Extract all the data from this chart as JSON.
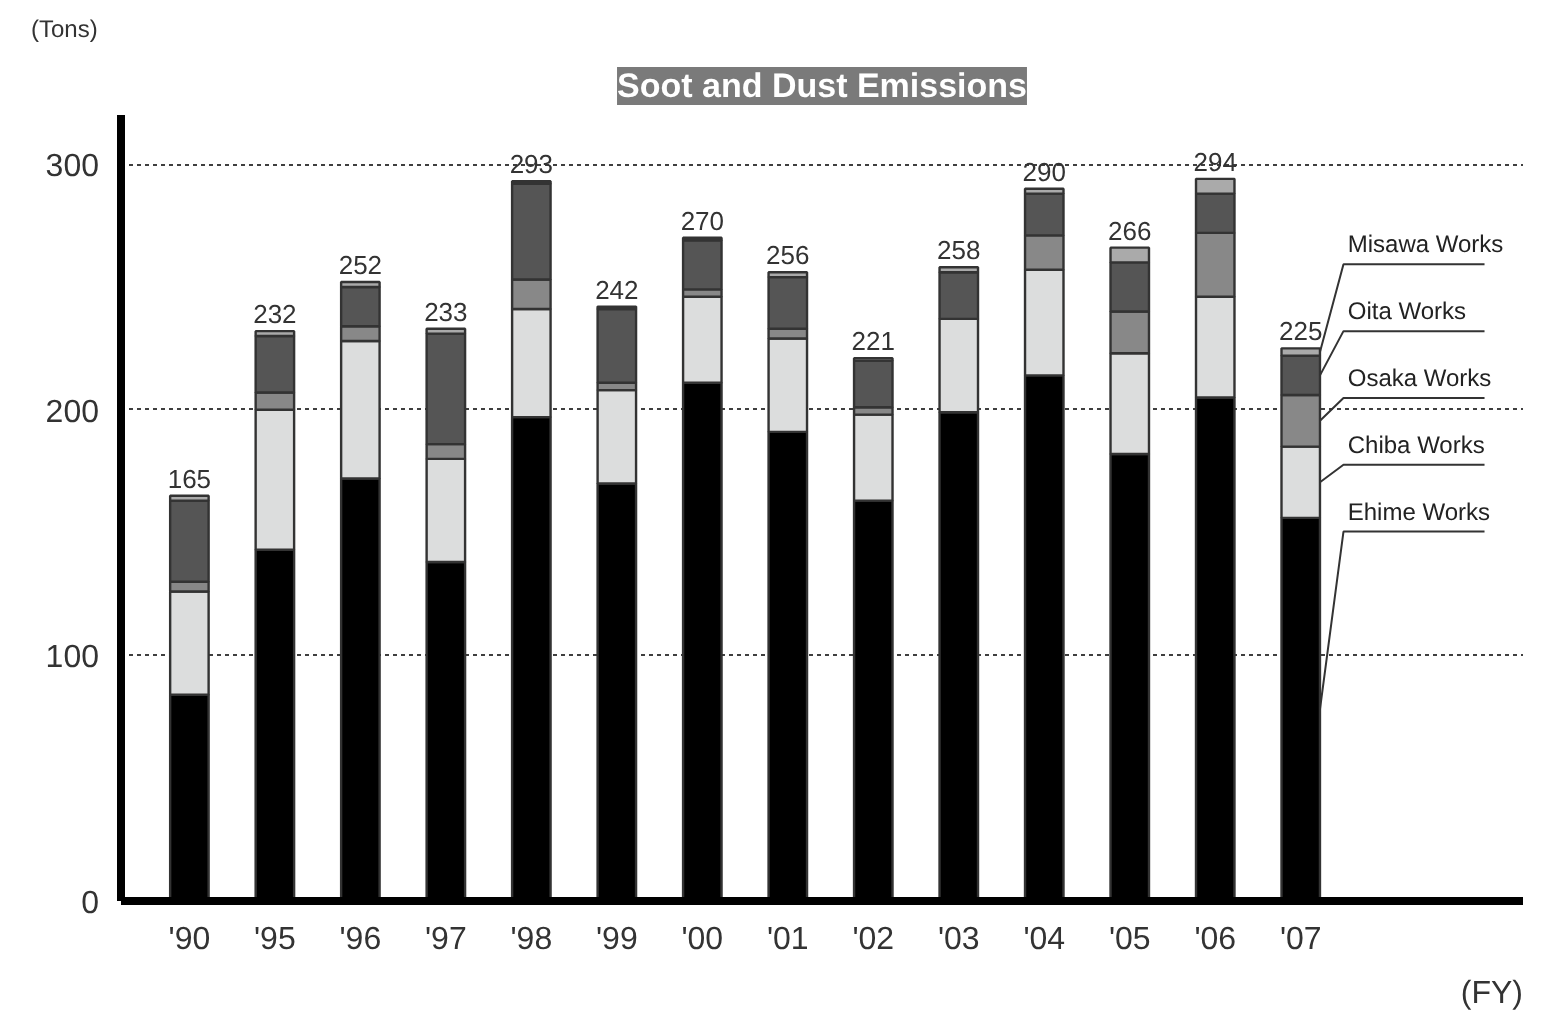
{
  "chart_data": {
    "type": "bar",
    "stacked": true,
    "title": "Soot and Dust Emissions",
    "ylabel": "(Tons)",
    "xlabel": "(FY)",
    "categories": [
      "'90",
      "'95",
      "'96",
      "'97",
      "'98",
      "'99",
      "'00",
      "'01",
      "'02",
      "'03",
      "'04",
      "'05",
      "'06",
      "'07"
    ],
    "series": [
      {
        "name": "Ehime Works",
        "color": "#000000",
        "values": [
          84,
          143,
          172,
          138,
          197,
          170,
          211,
          191,
          163,
          199,
          214,
          182,
          205,
          156
        ]
      },
      {
        "name": "Chiba Works",
        "color": "#dcdddd",
        "values": [
          42,
          57,
          56,
          42,
          44,
          38,
          35,
          38,
          35,
          38,
          43,
          41,
          41,
          29
        ]
      },
      {
        "name": "Osaka Works",
        "color": "#888888",
        "values": [
          4,
          7,
          6,
          6,
          12,
          3,
          3,
          4,
          3,
          null,
          14,
          17,
          26,
          21
        ]
      },
      {
        "name": "Oita Works",
        "color": "#555555",
        "values": [
          33,
          23,
          16,
          45,
          39,
          30,
          20,
          21,
          19,
          19,
          17,
          20,
          16,
          16
        ]
      },
      {
        "name": "Misawa Works",
        "color": "#aaaaaa",
        "values": [
          2,
          2,
          2,
          2,
          1,
          1,
          1,
          2,
          1,
          2,
          2,
          6,
          6,
          3
        ]
      }
    ],
    "totals": [
      "165",
      "232",
      "252",
      "233",
      "293",
      "242",
      "270",
      "256",
      "221",
      "258",
      "290",
      "266",
      "294",
      "225"
    ],
    "ylim": [
      0,
      320
    ],
    "yticks": [
      0,
      100,
      200,
      300
    ],
    "grid": "y",
    "legend": "right"
  }
}
